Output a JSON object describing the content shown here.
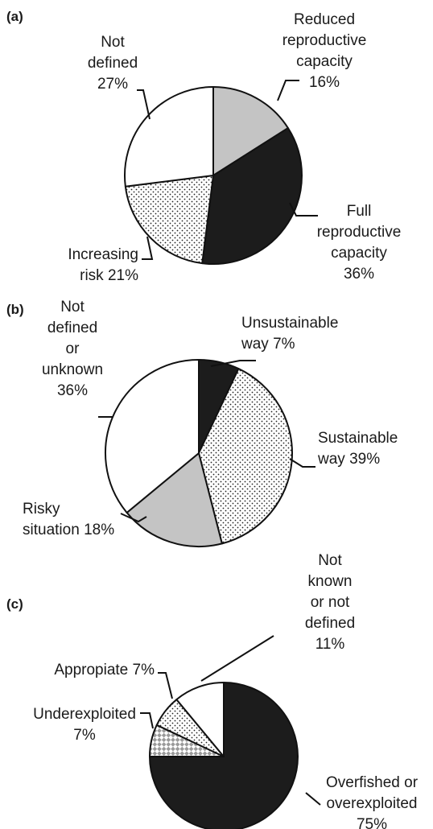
{
  "chart_data": [
    {
      "type": "pie",
      "title": "(a)",
      "categories": [
        "Reduced reproductive capacity",
        "Full reproductive capacity",
        "Increasing risk",
        "Not defined"
      ],
      "values": [
        16,
        36,
        21,
        27
      ],
      "value_labels": [
        "16%",
        "36%",
        "21%",
        "27%"
      ],
      "colors": [
        "#c4c4c4",
        "#1c1c1c",
        "dots",
        "#ffffff"
      ]
    },
    {
      "type": "pie",
      "title": "(b)",
      "categories": [
        "Unsustainable way",
        "Sustainable way",
        "Risky situation",
        "Not defined or unknown"
      ],
      "values": [
        7,
        39,
        18,
        36
      ],
      "value_labels": [
        "7%",
        "39%",
        "18%",
        "36%"
      ],
      "colors": [
        "#1c1c1c",
        "dots",
        "#c4c4c4",
        "#ffffff"
      ]
    },
    {
      "type": "pie",
      "title": "(c)",
      "categories": [
        "Overfished or overexploited",
        "Underexploited",
        "Appropiate",
        "Not known or not defined"
      ],
      "values": [
        75,
        7,
        7,
        11
      ],
      "value_labels": [
        "75%",
        "7%",
        "7%",
        "11%"
      ],
      "colors": [
        "#1c1c1c",
        "checks",
        "dots",
        "#ffffff"
      ]
    }
  ]
}
